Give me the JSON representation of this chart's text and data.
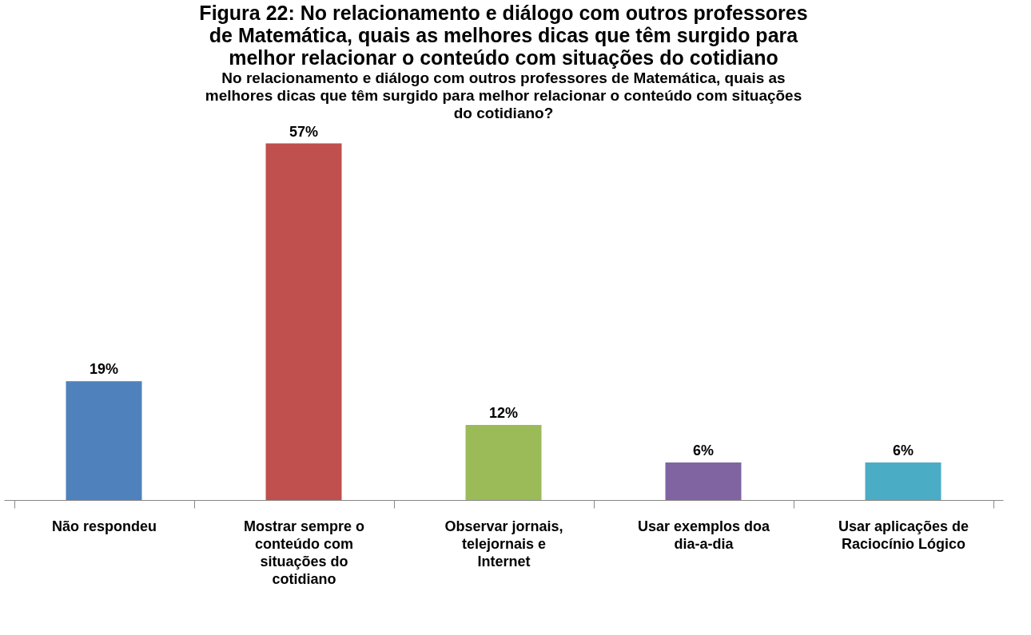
{
  "chart_data": {
    "type": "bar",
    "title": "Figura 22: No relacionamento e diálogo com outros professores de Matemática, quais as melhores dicas que têm surgido para melhor relacionar o conteúdo com situações do cotidiano",
    "subtitle": "No relacionamento e diálogo com outros professores de Matemática, quais as melhores dicas que têm surgido para melhor relacionar o conteúdo com situações do cotidiano?",
    "categories": [
      "Não respondeu",
      "Mostrar sempre o conteúdo com situações do cotidiano",
      "Observar jornais, telejornais e Internet",
      "Usar exemplos doa dia-a-dia",
      "Usar aplicações de Raciocínio Lógico"
    ],
    "values": [
      19,
      57,
      12,
      6,
      6
    ],
    "colors": [
      "#4f81bd",
      "#c0504d",
      "#9bbb59",
      "#8064a2",
      "#4bacc6"
    ],
    "value_labels": [
      "19%",
      "57%",
      "12%",
      "6%",
      "6%"
    ],
    "grid": false
  }
}
